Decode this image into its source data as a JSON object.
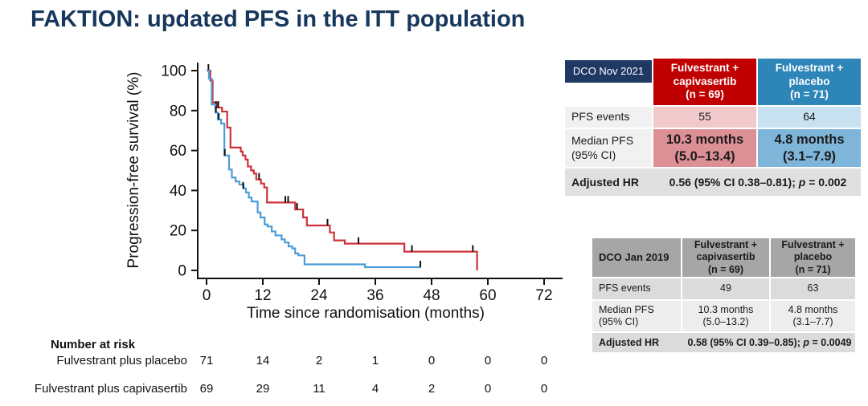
{
  "title": "FAKTION: updated PFS in the ITT population",
  "chart_data": {
    "type": "line",
    "subtype": "kaplan-meier-step",
    "xlabel": "Time since randomisation (months)",
    "ylabel": "Progression-free survival (%)",
    "xlim": [
      0,
      76
    ],
    "ylim": [
      0,
      100
    ],
    "x_ticks": [
      0,
      12,
      24,
      36,
      48,
      60,
      72
    ],
    "y_ticks": [
      0,
      20,
      40,
      60,
      80,
      100
    ],
    "grid": false,
    "legend": "none (series identified by tables at right)",
    "series": [
      {
        "name": "Fulvestrant + capivasertib",
        "color": "#CD3238",
        "steps": [
          [
            0,
            100
          ],
          [
            0.8,
            95
          ],
          [
            1.3,
            84
          ],
          [
            2.2,
            81.5
          ],
          [
            3.3,
            79.5
          ],
          [
            4.4,
            71.5
          ],
          [
            5.1,
            61.5
          ],
          [
            7.3,
            59.5
          ],
          [
            7.7,
            57.5
          ],
          [
            8.3,
            55.5
          ],
          [
            8.8,
            52
          ],
          [
            9.5,
            50
          ],
          [
            10.1,
            48.5
          ],
          [
            10.6,
            45.5
          ],
          [
            11.6,
            43.5
          ],
          [
            12.3,
            41.5
          ],
          [
            12.9,
            34
          ],
          [
            18.9,
            30.5
          ],
          [
            20.6,
            26.5
          ],
          [
            21.4,
            22.5
          ],
          [
            26.3,
            19
          ],
          [
            27.2,
            15
          ],
          [
            29.5,
            13.4
          ],
          [
            42.2,
            9.4
          ],
          [
            57.7,
            0
          ]
        ],
        "censors": [
          [
            0.4,
            100
          ],
          [
            2.0,
            81.5
          ],
          [
            2.5,
            81.5
          ],
          [
            11.2,
            45.5
          ],
          [
            16.8,
            34
          ],
          [
            17.4,
            34
          ],
          [
            19.3,
            30.5
          ],
          [
            25.8,
            22.5
          ],
          [
            32.4,
            13.4
          ],
          [
            43.8,
            9.4
          ],
          [
            56.8,
            9.4
          ]
        ]
      },
      {
        "name": "Fulvestrant + placebo",
        "color": "#4B9CD7",
        "steps": [
          [
            0,
            100
          ],
          [
            0.5,
            96
          ],
          [
            1.1,
            83
          ],
          [
            1.9,
            79
          ],
          [
            2.4,
            75.5
          ],
          [
            3.1,
            73.5
          ],
          [
            3.8,
            57.5
          ],
          [
            4.8,
            50.5
          ],
          [
            5.4,
            46.5
          ],
          [
            6.2,
            44.5
          ],
          [
            7.0,
            43
          ],
          [
            7.9,
            41
          ],
          [
            8.4,
            39
          ],
          [
            9.0,
            36.5
          ],
          [
            9.6,
            34.5
          ],
          [
            10.9,
            29
          ],
          [
            11.5,
            26.5
          ],
          [
            12.4,
            23
          ],
          [
            13.0,
            22
          ],
          [
            13.9,
            19.5
          ],
          [
            14.7,
            17.5
          ],
          [
            16.0,
            15.5
          ],
          [
            16.7,
            14
          ],
          [
            17.5,
            12
          ],
          [
            18.3,
            11
          ],
          [
            18.9,
            8.5
          ],
          [
            19.6,
            7.5
          ],
          [
            20.9,
            3
          ],
          [
            33.8,
            1.6
          ]
        ],
        "end_time": 45.7,
        "censors": [
          [
            2.0,
            79
          ],
          [
            2.6,
            75.5
          ],
          [
            3.9,
            57.5
          ],
          [
            7.8,
            41
          ],
          [
            45.6,
            1.6
          ]
        ]
      }
    ],
    "number_at_risk": {
      "title": "Number at risk",
      "times": [
        0,
        12,
        24,
        36,
        48,
        60,
        72
      ],
      "rows": [
        {
          "label": "Fulvestrant plus placebo",
          "counts": [
            "71",
            "14",
            "2",
            "1",
            "0",
            "0",
            "0"
          ]
        },
        {
          "label": "Fulvestrant plus capivasertib",
          "counts": [
            "69",
            "29",
            "11",
            "4",
            "2",
            "0",
            "0"
          ]
        }
      ]
    }
  },
  "table_2021": {
    "corner_label": "DCO Nov 2021",
    "cols": [
      {
        "l1": "Fulvestrant +",
        "l2": "capivasertib",
        "l3": "(n = 69)"
      },
      {
        "l1": "Fulvestrant +",
        "l2": "placebo",
        "l3": "(n = 71)"
      }
    ],
    "pfs_events": {
      "label": "PFS events",
      "capivasertib": "55",
      "placebo": "64"
    },
    "median": {
      "label_l1": "Median PFS",
      "label_l2": "(95% CI)",
      "capi_l1": "10.3 months",
      "capi_l2": "(5.0–13.4)",
      "placebo_l1": "4.8 months",
      "placebo_l2": "(3.1–7.9)"
    },
    "hr": {
      "label": "Adjusted HR",
      "pre": "0.56 (95% CI 0.38–0.81); ",
      "p": "p",
      "post": " = 0.002"
    }
  },
  "table_2019": {
    "corner_label": "DCO Jan 2019",
    "cols": [
      {
        "l1": "Fulvestrant +",
        "l2": "capivasertib",
        "l3": "(n = 69)"
      },
      {
        "l1": "Fulvestrant +",
        "l2": "placebo",
        "l3": "(n = 71)"
      }
    ],
    "pfs_events": {
      "label": "PFS events",
      "capivasertib": "49",
      "placebo": "63"
    },
    "median": {
      "label_l1": "Median PFS",
      "label_l2": "(95% CI)",
      "capi_l1": "10.3 months",
      "capi_l2": "(5.0–13.2)",
      "placebo_l1": "4.8 months",
      "placebo_l2": "(3.1–7.7)"
    },
    "hr": {
      "label": "Adjusted HR",
      "pre": "0.58 (95% CI 0.39–0.85); ",
      "p": "p",
      "post": " = 0.0049"
    }
  },
  "colors": {
    "title_text": "#17375D",
    "navy_chip": "#1F3864",
    "red_header": "#C00000",
    "blue_header": "#2E86B8",
    "pink_light": "#F2C9CB",
    "pink_mid": "#DD8F96",
    "blue_light": "#C8E2F1",
    "blue_mid": "#7FB5D9",
    "gray_label": "#F1F1F1",
    "gray_hr_row": "#E0E0E0",
    "gray_2019_header": "#A6A6A6",
    "gray_2019_row_dark": "#DBDBDB",
    "gray_2019_row_light": "#EDEDED",
    "curve_red": "#CD3238",
    "curve_blue": "#4B9CD7"
  }
}
